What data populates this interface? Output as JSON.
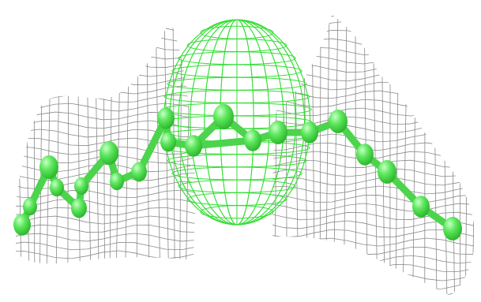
{
  "scene": {
    "subject": "molecular-model-in-electron-density-mesh",
    "colors": {
      "background": "#ffffff",
      "density_mesh": "#8a8a8a",
      "ligand_mesh": "#33dd33",
      "atom": "#5ee85e",
      "bond": "#4cd44c"
    },
    "atom_count": 21
  }
}
